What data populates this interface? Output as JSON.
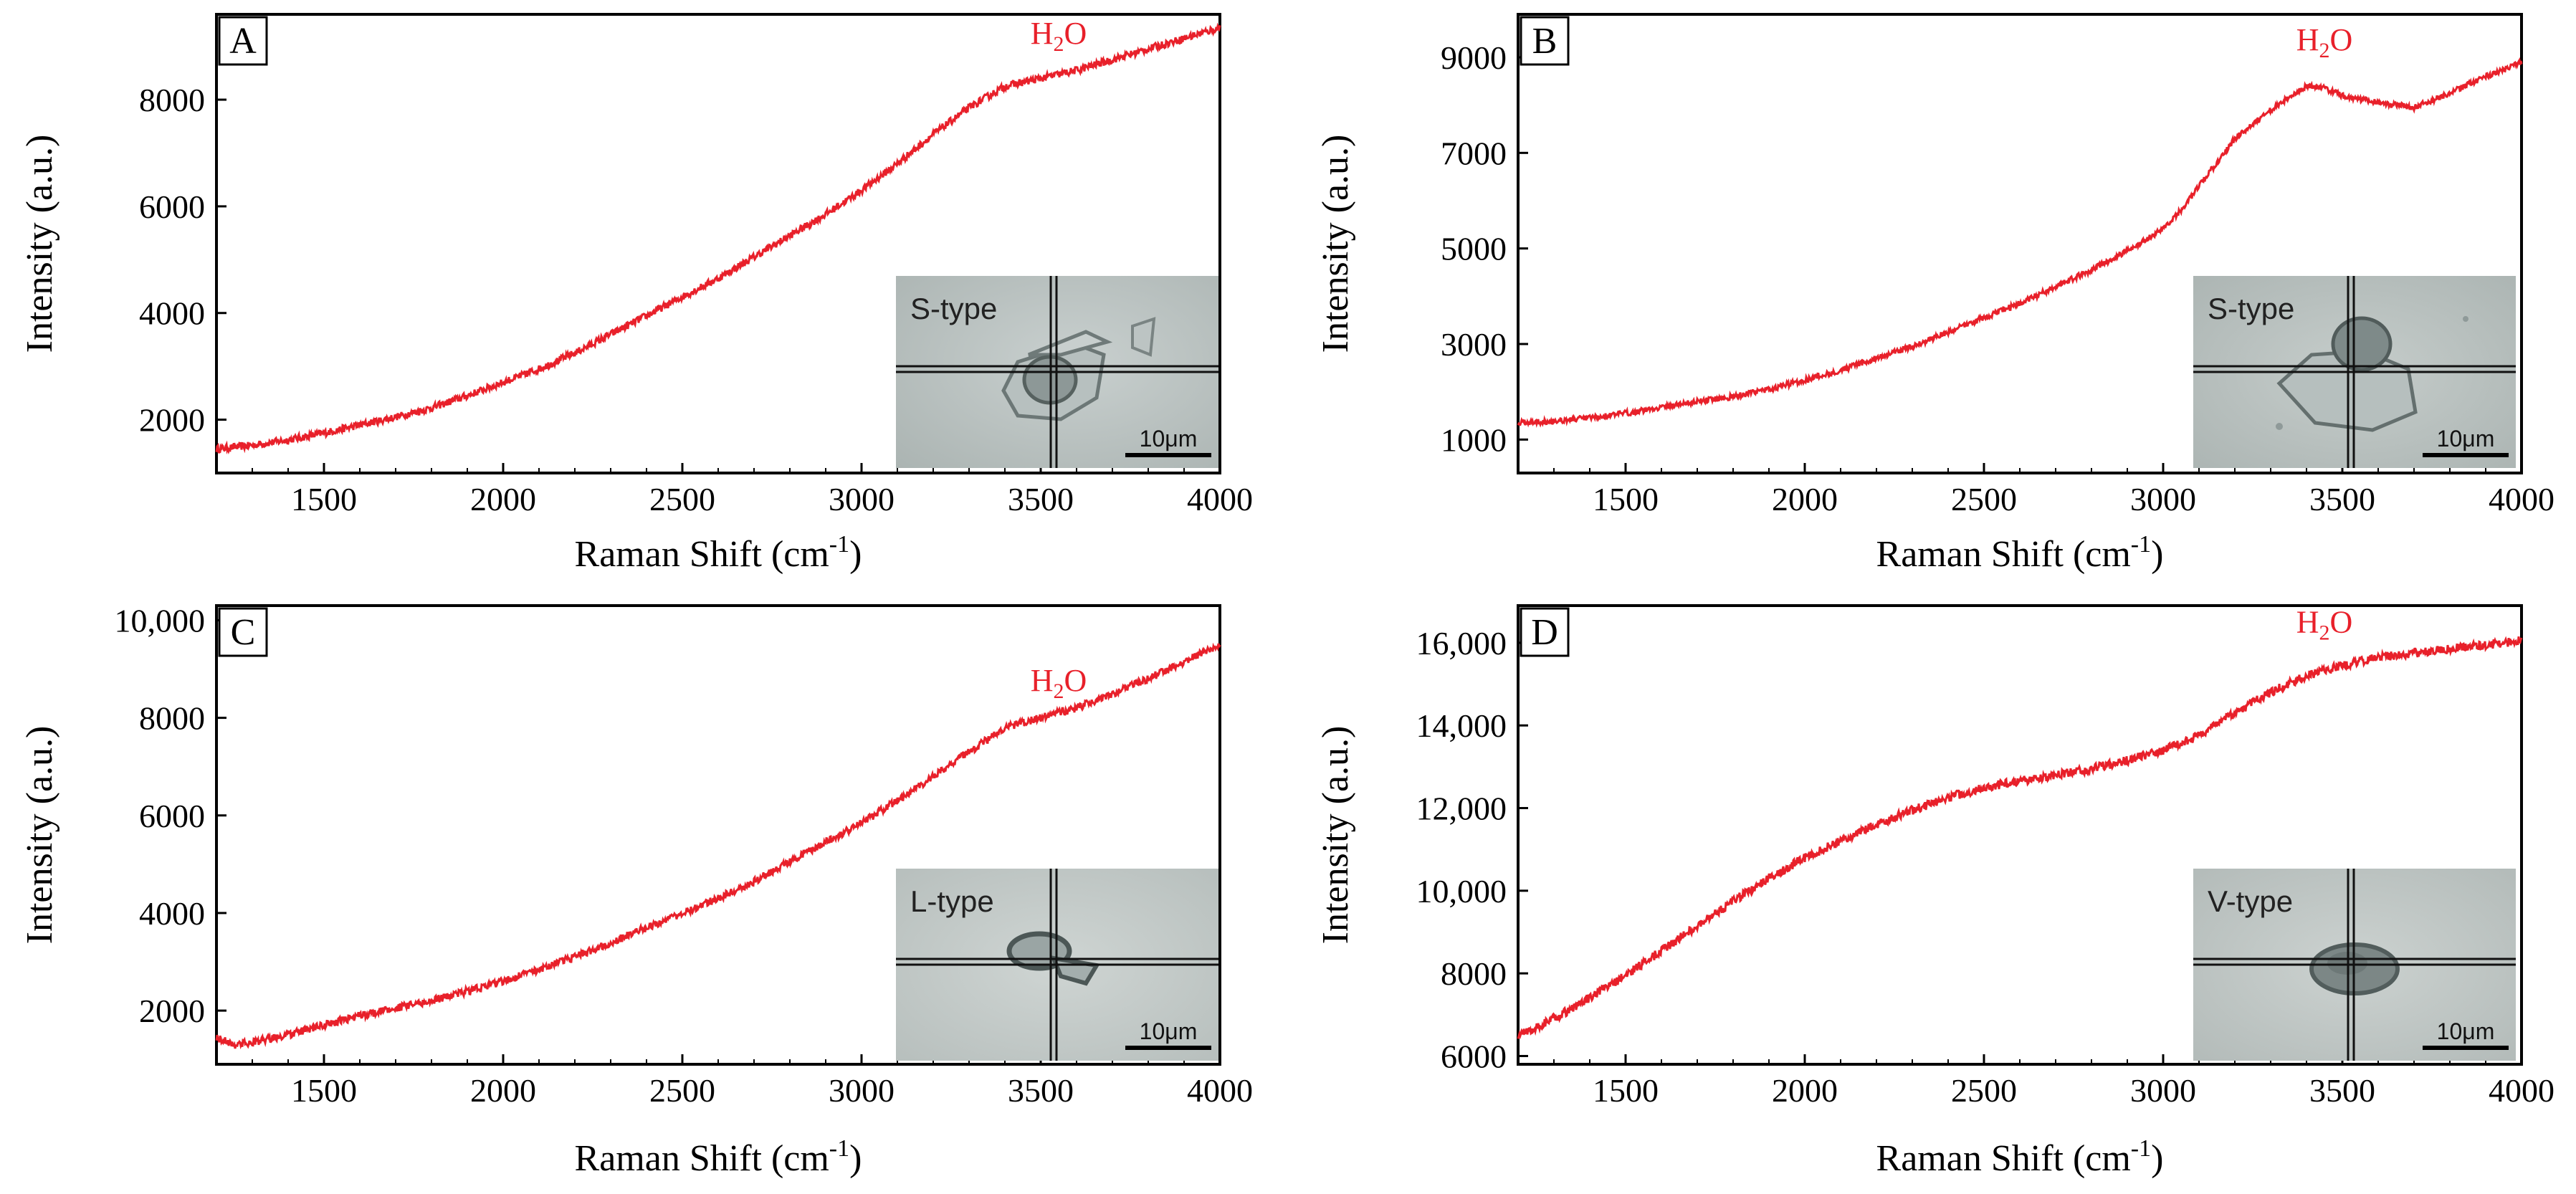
{
  "chart_data": [
    {
      "panel": "A",
      "type": "line",
      "xlabel": "Raman Shift (cm",
      "xlabel_sup": "-1",
      "xlabel_end": ")",
      "ylabel": "Intensity (a.u.)",
      "xlim": [
        1200,
        4000
      ],
      "ylim": [
        1000,
        9600
      ],
      "xticks": [
        1500,
        2000,
        2500,
        3000,
        3500,
        4000
      ],
      "xtick_labels": [
        "1500",
        "2000",
        "2500",
        "3000",
        "3500",
        "4000"
      ],
      "yticks": [
        2000,
        4000,
        6000,
        8000
      ],
      "ytick_labels": [
        "2000",
        "4000",
        "6000",
        "8000"
      ],
      "series": [
        {
          "name": "spectrum",
          "color": "#e8202a",
          "x": [
            1200,
            1300,
            1400,
            1500,
            1600,
            1700,
            1800,
            1900,
            2000,
            2100,
            2200,
            2300,
            2400,
            2500,
            2600,
            2700,
            2800,
            2900,
            3000,
            3100,
            3200,
            3300,
            3400,
            3500,
            3600,
            3700,
            3800,
            3900,
            4000
          ],
          "y": [
            1450,
            1520,
            1620,
            1750,
            1900,
            2050,
            2220,
            2450,
            2700,
            2950,
            3250,
            3600,
            3950,
            4300,
            4650,
            5050,
            5450,
            5850,
            6300,
            6800,
            7350,
            7850,
            8250,
            8400,
            8550,
            8750,
            8950,
            9150,
            9350
          ],
          "noise": 70
        }
      ],
      "annotation": {
        "text": "H",
        "sub": "2",
        "rest": "O",
        "x": 3550,
        "y": 9050
      },
      "inset": {
        "label": "S-type",
        "scale": "10μm"
      }
    },
    {
      "panel": "B",
      "type": "line",
      "xlabel": "Raman Shift (cm",
      "xlabel_sup": "-1",
      "xlabel_end": ")",
      "ylabel": "Intensity (a.u.)",
      "xlim": [
        1200,
        4000
      ],
      "ylim": [
        300,
        9900
      ],
      "xticks": [
        1500,
        2000,
        2500,
        3000,
        3500,
        4000
      ],
      "xtick_labels": [
        "1500",
        "2000",
        "2500",
        "3000",
        "3500",
        "4000"
      ],
      "yticks": [
        1000,
        3000,
        5000,
        7000,
        9000
      ],
      "ytick_labels": [
        "1000",
        "3000",
        "5000",
        "7000",
        "9000"
      ],
      "series": [
        {
          "name": "spectrum",
          "color": "#e8202a",
          "x": [
            1200,
            1300,
            1400,
            1500,
            1600,
            1700,
            1800,
            1900,
            2000,
            2100,
            2200,
            2300,
            2400,
            2500,
            2600,
            2700,
            2800,
            2900,
            3000,
            3050,
            3100,
            3200,
            3300,
            3400,
            3450,
            3500,
            3600,
            3700,
            3800,
            3900,
            4000
          ],
          "y": [
            1350,
            1390,
            1450,
            1550,
            1680,
            1800,
            1900,
            2050,
            2250,
            2450,
            2700,
            2950,
            3250,
            3550,
            3850,
            4200,
            4550,
            4950,
            5400,
            5800,
            6300,
            7300,
            7900,
            8400,
            8350,
            8200,
            8050,
            7950,
            8250,
            8600,
            8900
          ],
          "noise": 60
        }
      ],
      "annotation": {
        "text": "H",
        "sub": "2",
        "rest": "O",
        "x": 3450,
        "y": 9150
      },
      "inset": {
        "label": "S-type",
        "scale": "10μm"
      }
    },
    {
      "panel": "C",
      "type": "line",
      "xlabel": "Raman Shift (cm",
      "xlabel_sup": "-1",
      "xlabel_end": ")",
      "ylabel": "Intensity (a.u.)",
      "xlim": [
        1200,
        4000
      ],
      "ylim": [
        900,
        10300
      ],
      "xticks": [
        1500,
        2000,
        2500,
        3000,
        3500,
        4000
      ],
      "xtick_labels": [
        "1500",
        "2000",
        "2500",
        "3000",
        "3500",
        "4000"
      ],
      "yticks": [
        2000,
        4000,
        6000,
        8000,
        10000
      ],
      "ytick_labels": [
        "2000",
        "4000",
        "6000",
        "8000",
        "10,000"
      ],
      "series": [
        {
          "name": "spectrum",
          "color": "#e8202a",
          "x": [
            1200,
            1250,
            1300,
            1400,
            1500,
            1600,
            1700,
            1800,
            1900,
            2000,
            2100,
            2200,
            2300,
            2400,
            2500,
            2600,
            2700,
            2800,
            2900,
            3000,
            3100,
            3200,
            3300,
            3400,
            3500,
            3600,
            3700,
            3800,
            3900,
            4000
          ],
          "y": [
            1450,
            1300,
            1350,
            1500,
            1700,
            1900,
            2050,
            2200,
            2400,
            2600,
            2850,
            3100,
            3400,
            3700,
            4000,
            4300,
            4650,
            5050,
            5450,
            5850,
            6300,
            6800,
            7300,
            7800,
            8000,
            8200,
            8500,
            8800,
            9150,
            9500
          ],
          "noise": 80
        }
      ],
      "annotation": {
        "text": "H",
        "sub": "2",
        "rest": "O",
        "x": 3550,
        "y": 8550
      },
      "inset": {
        "label": "L-type",
        "scale": "10μm"
      }
    },
    {
      "panel": "D",
      "type": "line",
      "xlabel": "Raman Shift (cm",
      "xlabel_sup": "-1",
      "xlabel_end": ")",
      "ylabel": "Intensity (a.u.)",
      "xlim": [
        1200,
        4000
      ],
      "ylim": [
        5800,
        16900
      ],
      "xticks": [
        1500,
        2000,
        2500,
        3000,
        3500,
        4000
      ],
      "xtick_labels": [
        "1500",
        "2000",
        "2500",
        "3000",
        "3500",
        "4000"
      ],
      "yticks": [
        6000,
        8000,
        10000,
        12000,
        14000,
        16000
      ],
      "ytick_labels": [
        "6000",
        "8000",
        "10,000",
        "12,000",
        "14,000",
        "16,000"
      ],
      "series": [
        {
          "name": "spectrum",
          "color": "#e8202a",
          "x": [
            1200,
            1300,
            1400,
            1500,
            1600,
            1700,
            1800,
            1900,
            2000,
            2100,
            2200,
            2300,
            2400,
            2500,
            2600,
            2700,
            2800,
            2900,
            3000,
            3100,
            3200,
            3300,
            3400,
            3500,
            3600,
            3700,
            3800,
            3900,
            4000
          ],
          "y": [
            6500,
            6900,
            7400,
            7950,
            8550,
            9150,
            9750,
            10300,
            10800,
            11200,
            11600,
            11950,
            12250,
            12500,
            12650,
            12800,
            12950,
            13150,
            13400,
            13750,
            14300,
            14800,
            15200,
            15450,
            15650,
            15750,
            15850,
            15950,
            16050
          ],
          "noise": 110
        }
      ],
      "annotation": {
        "text": "H",
        "sub": "2",
        "rest": "O",
        "x": 3450,
        "y": 16250
      },
      "inset": {
        "label": "V-type",
        "scale": "10μm"
      }
    }
  ]
}
